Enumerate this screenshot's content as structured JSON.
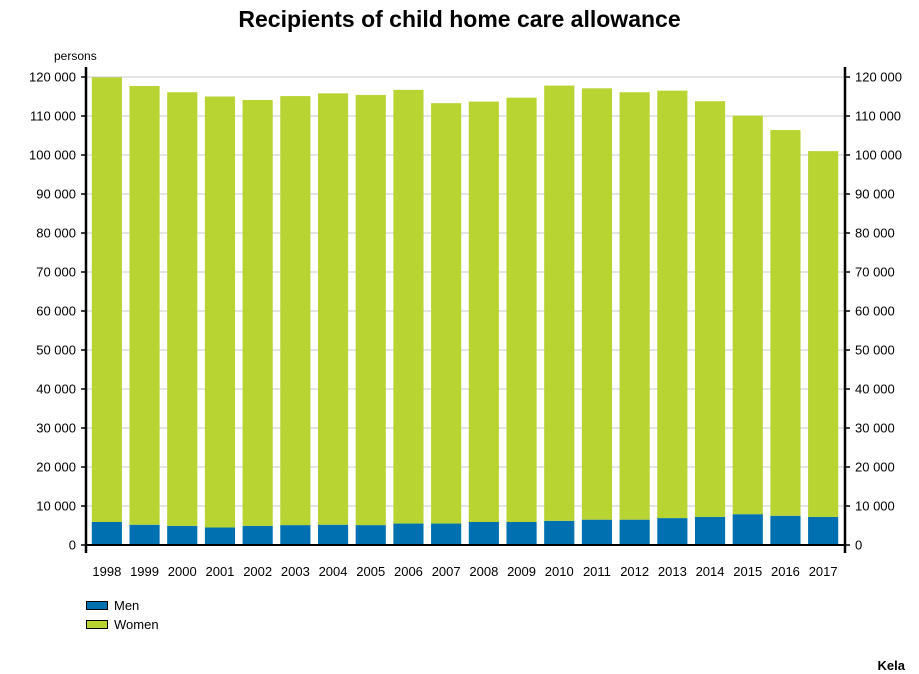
{
  "chart_data": {
    "type": "bar",
    "stacked": true,
    "title": "Recipients of child home care allowance",
    "ylabel": "persons",
    "xlabel": "",
    "ylim": [
      0,
      120000
    ],
    "ytick_step": 10000,
    "ytick_labels": [
      "0",
      "10 000",
      "20 000",
      "30 000",
      "40 000",
      "50 000",
      "60 000",
      "70 000",
      "80 000",
      "90 000",
      "100 000",
      "110 000",
      "120 000"
    ],
    "categories": [
      "1998",
      "1999",
      "2000",
      "2001",
      "2002",
      "2003",
      "2004",
      "2005",
      "2006",
      "2007",
      "2008",
      "2009",
      "2010",
      "2011",
      "2012",
      "2013",
      "2014",
      "2015",
      "2016",
      "2017"
    ],
    "series": [
      {
        "name": "Men",
        "color": "#0070B0",
        "values": [
          5900,
          5200,
          4900,
          4500,
          4900,
          5100,
          5200,
          5100,
          5500,
          5500,
          5900,
          5900,
          6200,
          6500,
          6500,
          6900,
          7200,
          7900,
          7500,
          7200
        ]
      },
      {
        "name": "Women",
        "color": "#B7D433",
        "values": [
          114000,
          112500,
          111200,
          110500,
          109200,
          110000,
          110600,
          110300,
          111200,
          107800,
          107800,
          108800,
          111600,
          110600,
          109600,
          109600,
          106600,
          102200,
          98900,
          93800
        ]
      }
    ],
    "grid": true,
    "legend_position": "bottom-left",
    "source": "Kela"
  }
}
